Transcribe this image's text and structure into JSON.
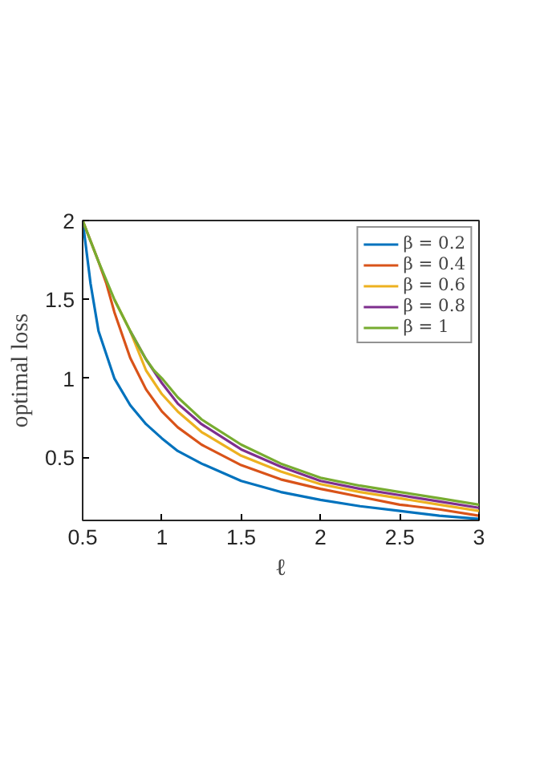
{
  "chart_data": {
    "type": "line",
    "xlabel": "ℓ",
    "ylabel": "optimal loss",
    "xlim": [
      0.5,
      3
    ],
    "ylim": [
      0.1,
      2
    ],
    "xticks": [
      0.5,
      1,
      1.5,
      2,
      2.5,
      3
    ],
    "yticks": [
      0.5,
      1,
      1.5,
      2
    ],
    "grid": false,
    "legend": "top right",
    "line_style": "solid",
    "marker": "none",
    "series": [
      {
        "name": "β = 0.2",
        "color": "#0072bd",
        "x": [
          0.5,
          0.55,
          0.6,
          0.7,
          0.8,
          0.9,
          1,
          1.1,
          1.25,
          1.5,
          1.75,
          2,
          2.25,
          2.5,
          2.75,
          3
        ],
        "values": [
          2,
          1.6,
          1.3,
          1.0,
          0.83,
          0.71,
          0.62,
          0.54,
          0.46,
          0.35,
          0.28,
          0.23,
          0.19,
          0.16,
          0.13,
          0.11
        ]
      },
      {
        "name": "β = 0.4",
        "color": "#d95319",
        "x": [
          0.5,
          0.6,
          0.65,
          0.7,
          0.8,
          0.9,
          1,
          1.1,
          1.25,
          1.5,
          1.75,
          2,
          2.25,
          2.5,
          2.75,
          3
        ],
        "values": [
          2,
          1.74,
          1.6,
          1.42,
          1.13,
          0.93,
          0.79,
          0.69,
          0.58,
          0.45,
          0.36,
          0.3,
          0.25,
          0.2,
          0.17,
          0.13
        ]
      },
      {
        "name": "β = 0.6",
        "color": "#edb120",
        "x": [
          0.7,
          0.8,
          0.9,
          1,
          1.1,
          1.25,
          1.5,
          1.75,
          2,
          2.25,
          2.5,
          2.75,
          3
        ],
        "values": [
          1.5,
          1.3,
          1.05,
          0.9,
          0.79,
          0.66,
          0.51,
          0.41,
          0.33,
          0.28,
          0.24,
          0.2,
          0.16
        ]
      },
      {
        "name": "β = 0.8",
        "color": "#7e2f8e",
        "x": [
          0.8,
          0.9,
          1,
          1.1,
          1.25,
          1.5,
          1.75,
          2,
          2.25,
          2.5,
          2.75,
          3
        ],
        "values": [
          1.3,
          1.12,
          0.97,
          0.84,
          0.71,
          0.55,
          0.44,
          0.35,
          0.3,
          0.26,
          0.22,
          0.18
        ]
      },
      {
        "name": "β = 1",
        "color": "#77ac30",
        "x": [
          0.5,
          0.6,
          0.7,
          0.8,
          0.9,
          0.95,
          1,
          1.1,
          1.25,
          1.5,
          1.75,
          2,
          2.25,
          2.5,
          2.75,
          3
        ],
        "values": [
          2,
          1.74,
          1.5,
          1.3,
          1.12,
          1.05,
          1.0,
          0.88,
          0.74,
          0.58,
          0.46,
          0.37,
          0.32,
          0.28,
          0.24,
          0.2
        ]
      }
    ]
  }
}
